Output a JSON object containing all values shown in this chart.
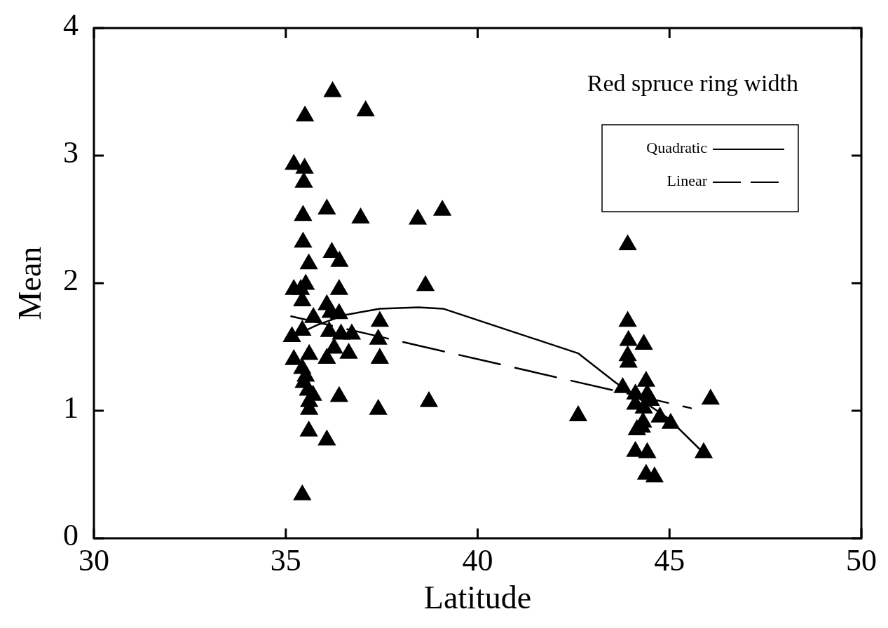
{
  "chart_data": {
    "type": "scatter",
    "title": "Red spruce ring width",
    "xlabel": "Latitude",
    "ylabel": "Mean",
    "xlim": [
      30,
      50
    ],
    "xticks": [
      30,
      35,
      40,
      45,
      50
    ],
    "ylim": [
      0,
      4
    ],
    "yticks": [
      0,
      1,
      2,
      3,
      4
    ],
    "grid": false,
    "legend": "top right",
    "marker": "triangle",
    "series": [
      {
        "color": "#000000",
        "x": [
          36.22,
          37.08,
          35.5,
          35.21,
          35.49,
          35.47,
          35.45,
          36.07,
          36.95,
          38.44,
          39.08,
          35.45,
          36.2,
          36.4,
          35.6,
          35.21,
          35.39,
          35.52,
          36.39,
          38.64,
          35.43,
          36.07,
          35.72,
          36.17,
          36.39,
          37.45,
          35.16,
          35.43,
          36.13,
          36.44,
          36.72,
          37.41,
          36.26,
          36.64,
          35.21,
          35.61,
          36.07,
          37.45,
          35.43,
          35.52,
          35.47,
          35.58,
          35.71,
          35.61,
          35.61,
          36.39,
          37.41,
          38.73,
          35.6,
          36.07,
          35.43,
          42.62,
          43.91,
          43.91,
          43.93,
          44.33,
          43.91,
          43.93,
          43.78,
          44.39,
          44.11,
          44.42,
          44.51,
          44.11,
          44.33,
          44.75,
          45.03,
          44.31,
          44.15,
          44.28,
          44.11,
          44.42,
          44.39,
          44.61,
          45.89,
          46.07
        ],
        "values": [
          3.5,
          3.35,
          3.31,
          2.93,
          2.9,
          2.79,
          2.53,
          2.58,
          2.51,
          2.5,
          2.57,
          2.32,
          2.24,
          2.17,
          2.15,
          1.95,
          1.95,
          1.99,
          1.95,
          1.98,
          1.86,
          1.83,
          1.73,
          1.77,
          1.76,
          1.7,
          1.58,
          1.63,
          1.62,
          1.6,
          1.6,
          1.56,
          1.49,
          1.45,
          1.4,
          1.44,
          1.41,
          1.41,
          1.33,
          1.27,
          1.22,
          1.16,
          1.12,
          1.07,
          1.01,
          1.11,
          1.01,
          1.07,
          0.84,
          0.77,
          0.34,
          0.96,
          2.3,
          1.7,
          1.55,
          1.52,
          1.43,
          1.38,
          1.18,
          1.23,
          1.13,
          1.13,
          1.08,
          1.05,
          1.02,
          0.95,
          0.9,
          0.91,
          0.85,
          0.87,
          0.68,
          0.67,
          0.5,
          0.48,
          0.67,
          1.09
        ]
      },
      {
        "type": "line",
        "name": "Quadratic",
        "color": "#000000",
        "marker": "none",
        "line_style": "solid",
        "x": [
          35.1,
          35.8,
          36.53,
          37.45,
          38.46,
          39.1,
          42.62,
          43.6,
          44.97,
          45.85
        ],
        "values": [
          1.57,
          1.67,
          1.75,
          1.8,
          1.81,
          1.8,
          1.45,
          1.22,
          0.94,
          0.68
        ]
      },
      {
        "type": "line",
        "name": "Linear",
        "color": "#000000",
        "marker": "none",
        "line_style": "dashed",
        "x": [
          35.14,
          45.56
        ],
        "values": [
          1.74,
          1.02
        ]
      }
    ]
  }
}
